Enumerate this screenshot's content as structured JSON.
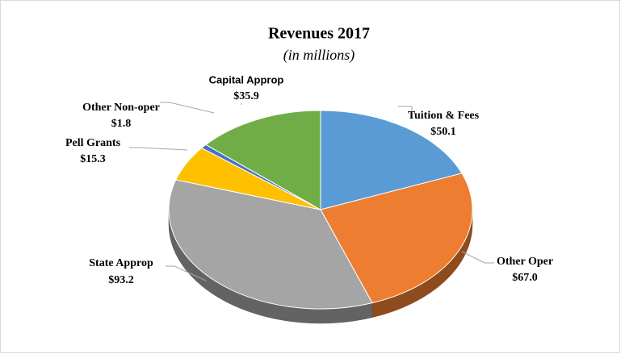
{
  "chart_data": {
    "type": "pie",
    "title": "Revenues 2017",
    "subtitle": "(in millions)",
    "categories": [
      "Tuition & Fees",
      "Other Oper",
      "State Approp",
      "Pell Grants",
      "Other Non-oper",
      "Capital Approp"
    ],
    "values": [
      50.1,
      67.0,
      93.2,
      15.3,
      1.8,
      35.9
    ],
    "value_labels": [
      "$50.1",
      "$67.0",
      "$93.2",
      "$15.3",
      "$1.8",
      "$35.9"
    ],
    "colors": [
      "#5b9bd5",
      "#ed7d31",
      "#a5a5a5",
      "#ffc000",
      "#4472c4",
      "#70ad47"
    ]
  }
}
